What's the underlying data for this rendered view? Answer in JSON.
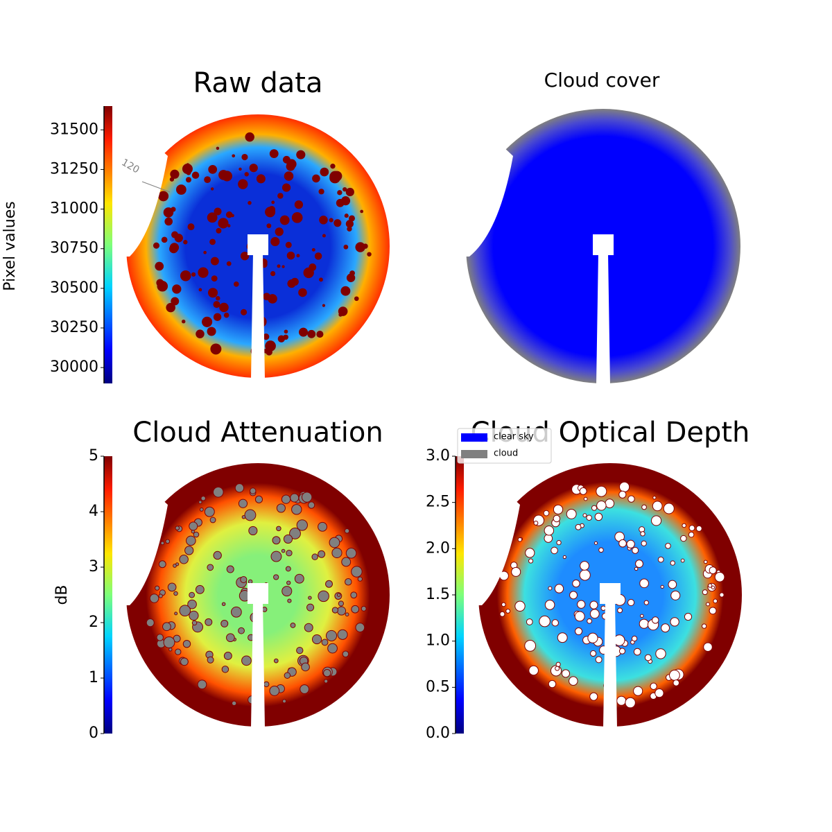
{
  "chart_data": [
    {
      "type": "image",
      "title": "Raw data",
      "ylabel": "Pixel values",
      "ylim": [
        29900,
        31650
      ],
      "yticks": [
        30000,
        30250,
        30500,
        30750,
        31000,
        31250,
        31500
      ],
      "annotations": [
        "120"
      ]
    },
    {
      "type": "image",
      "title": "Cloud cover"
    },
    {
      "type": "image",
      "title": "Cloud Attenuation",
      "ylabel": "dB",
      "ylim": [
        0,
        5
      ],
      "yticks": [
        0,
        1,
        2,
        3,
        4,
        5
      ]
    },
    {
      "type": "image",
      "title": "Cloud Optical Depth",
      "ylim": [
        0,
        3
      ],
      "yticks": [
        {
          "value": 0,
          "label": "0.0"
        },
        0.5,
        {
          "value": 1,
          "label": "1.0"
        },
        1.5,
        {
          "value": 2,
          "label": "2.0"
        },
        2.5,
        {
          "value": 3,
          "label": "3.0"
        }
      ],
      "series": [
        {
          "name": "clear sky",
          "color": "#0000ff"
        },
        {
          "name": "cloud",
          "color": "#808080"
        }
      ]
    }
  ]
}
